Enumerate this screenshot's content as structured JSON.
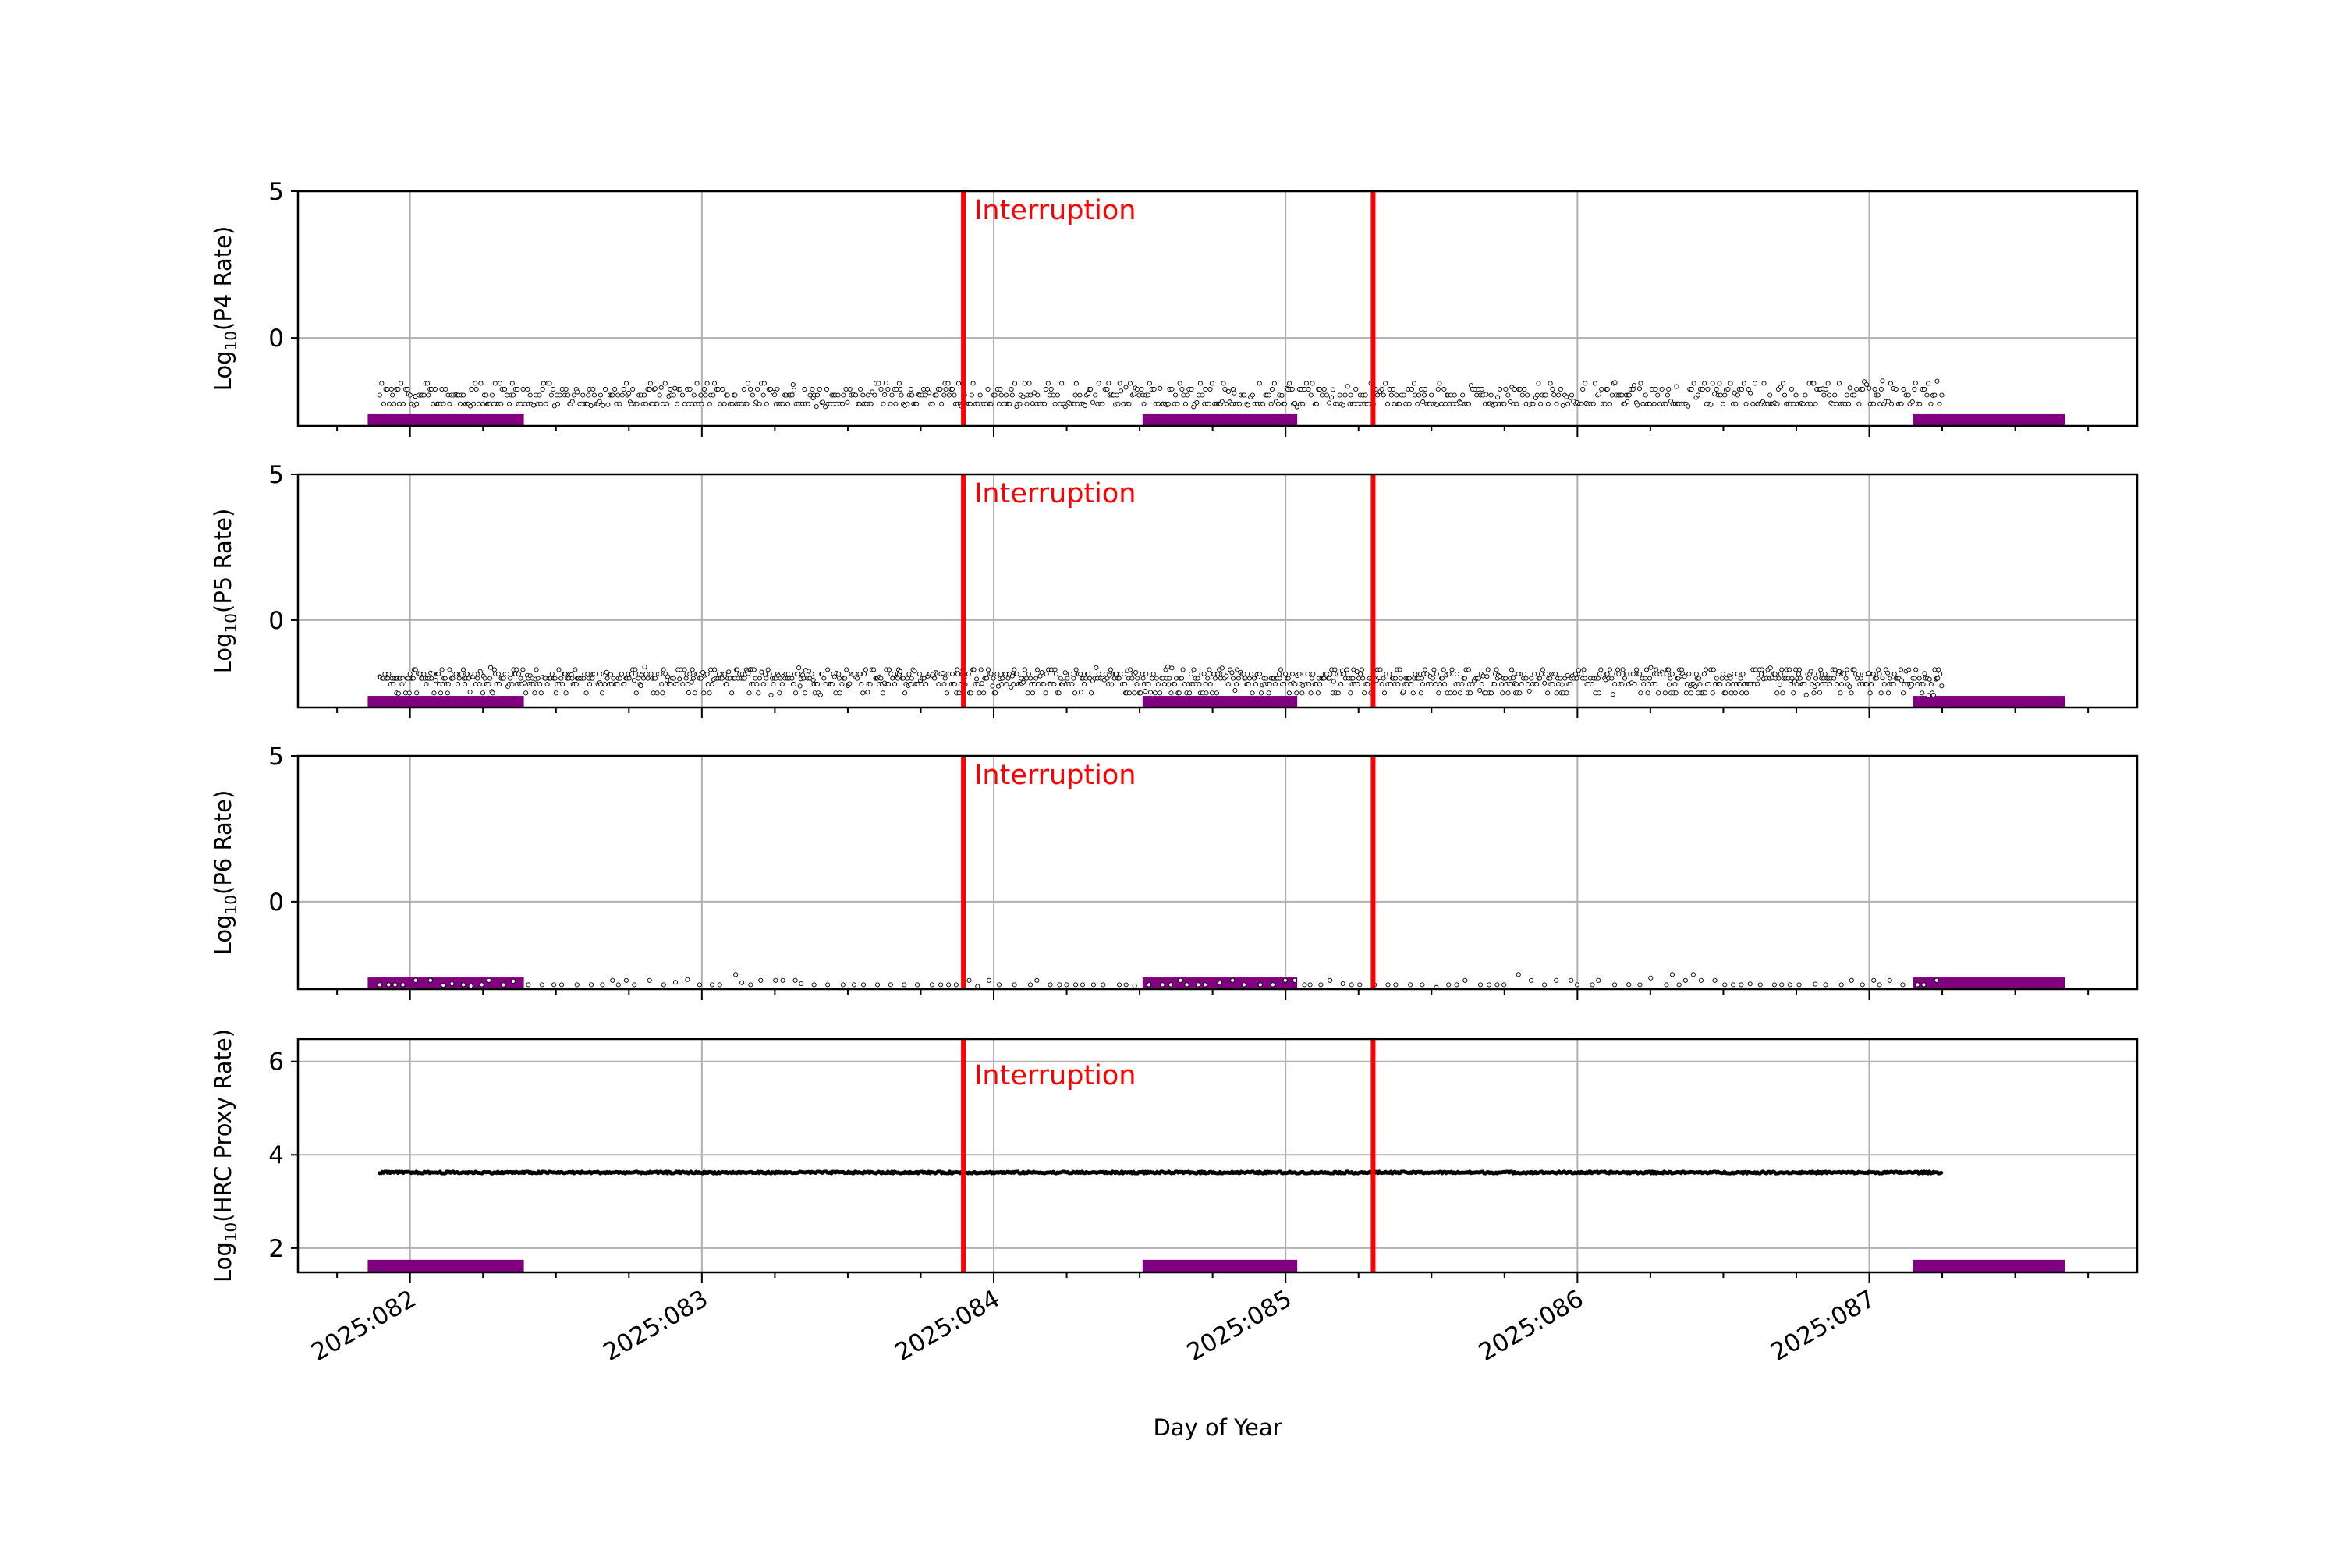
{
  "chart_data": {
    "type": "scatter",
    "xlabel": "Day of Year",
    "x_ticks": [
      {
        "value": 82,
        "label": "2025:082"
      },
      {
        "value": 83,
        "label": "2025:083"
      },
      {
        "value": 84,
        "label": "2025:084"
      },
      {
        "value": 85,
        "label": "2025:085"
      },
      {
        "value": 86,
        "label": "2025:086"
      },
      {
        "value": 87,
        "label": "2025:087"
      }
    ],
    "xlim": [
      81.616,
      87.918
    ],
    "minor_tick_step": 0.25,
    "grid": true,
    "data_range": [
      81.896,
      87.25
    ],
    "interruptions": [
      83.896,
      85.3
    ],
    "interruption_label": "Interruption",
    "interruption_color": "#ff0000",
    "shaded_intervals": [
      [
        81.855,
        82.39
      ],
      [
        84.51,
        85.04
      ],
      [
        87.15,
        87.67
      ]
    ],
    "shaded_color": "#800080",
    "panels": [
      {
        "name": "P4",
        "ylabel_pre": "Log",
        "ylabel_sub": "10",
        "ylabel_post": "(P4 Rate)",
        "ylim": [
          -3,
          5
        ],
        "yticks": [
          {
            "value": 0,
            "label": "0"
          },
          {
            "value": 5,
            "label": "5"
          }
        ],
        "bar_top": -2.6,
        "levels": [
          -2.25,
          -1.95,
          -1.75,
          -1.55
        ],
        "level_weights": [
          0.45,
          0.25,
          0.2,
          0.1
        ],
        "density": 0.75
      },
      {
        "name": "P5",
        "ylabel_pre": "Log",
        "ylabel_sub": "10",
        "ylabel_post": "(P5 Rate)",
        "ylim": [
          -3,
          5
        ],
        "yticks": [
          {
            "value": 0,
            "label": "0"
          },
          {
            "value": 5,
            "label": "5"
          }
        ],
        "bar_top": -2.6,
        "levels": [
          -2.5,
          -2.2,
          -2.0,
          -1.85,
          -1.7
        ],
        "level_weights": [
          0.12,
          0.25,
          0.3,
          0.23,
          0.1
        ],
        "density": 1.0
      },
      {
        "name": "P6",
        "ylabel_pre": "Log",
        "ylabel_sub": "10",
        "ylabel_post": "(P6 Rate)",
        "ylim": [
          -3,
          5
        ],
        "yticks": [
          {
            "value": 0,
            "label": "0"
          },
          {
            "value": 5,
            "label": "5"
          }
        ],
        "bar_top": -2.6,
        "levels": [
          -2.85,
          -2.7,
          -2.5
        ],
        "level_weights": [
          0.7,
          0.25,
          0.05
        ],
        "density": 0.12
      },
      {
        "name": "HRC Proxy",
        "ylabel_pre": "Log",
        "ylabel_sub": "10",
        "ylabel_post": "(HRC Proxy Rate)",
        "ylim": [
          1.48,
          6.48
        ],
        "yticks": [
          {
            "value": 2,
            "label": "2"
          },
          {
            "value": 4,
            "label": "4"
          },
          {
            "value": 6,
            "label": "6"
          }
        ],
        "bar_top": 1.75,
        "levels": [
          3.62
        ],
        "level_weights": [
          1
        ],
        "density": 1.0
      }
    ]
  }
}
